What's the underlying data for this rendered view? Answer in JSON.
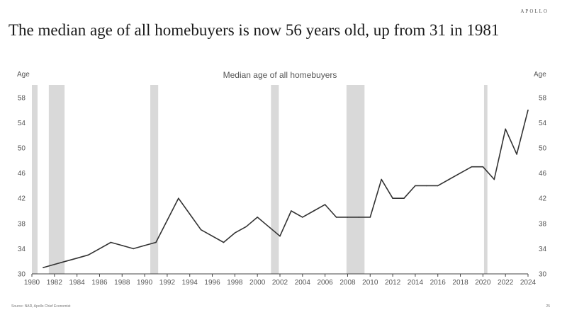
{
  "brand": "APOLLO",
  "headline": "The median age of all homebuyers is now 56 years old, up from 31 in 1981",
  "source": "Source: NAR, Apollo Chief Economist",
  "page_number": "25",
  "colors": {
    "line": "#333333",
    "recession": "#d9d9d9",
    "axis": "#444444",
    "text": "#555555"
  },
  "chart_data": {
    "type": "line",
    "title": "Median age of all homebuyers",
    "ylabel_left": "Age",
    "ylabel_right": "Age",
    "xlim": [
      1980,
      2024
    ],
    "ylim": [
      30,
      60
    ],
    "xticks": [
      "1980",
      "1982",
      "1984",
      "1986",
      "1988",
      "1990",
      "1992",
      "1994",
      "1996",
      "1998",
      "2000",
      "2002",
      "2004",
      "2006",
      "2008",
      "2010",
      "2012",
      "2014",
      "2016",
      "2018",
      "2020",
      "2022",
      "2024"
    ],
    "yticks": [
      "30",
      "34",
      "38",
      "42",
      "46",
      "50",
      "54",
      "58"
    ],
    "grid": false,
    "series": [
      {
        "x": [
          1981,
          1982,
          1983,
          1984,
          1985,
          1986,
          1987,
          1988,
          1989,
          1990,
          1991,
          1992,
          1993,
          1994,
          1995,
          1996,
          1997,
          1998,
          1999,
          2000,
          2001,
          2002,
          2003,
          2004,
          2005,
          2006,
          2007,
          2008,
          2009,
          2010,
          2011,
          2012,
          2013,
          2014,
          2015,
          2016,
          2017,
          2018,
          2019,
          2020,
          2021,
          2022,
          2023,
          2024
        ],
        "values": [
          31,
          31.5,
          32,
          32.5,
          33,
          34,
          35,
          34.5,
          34,
          34.5,
          35,
          38.5,
          42,
          39.5,
          37,
          36,
          35,
          36.5,
          37.5,
          39,
          37.5,
          36,
          40,
          39,
          40,
          41,
          39,
          39,
          39,
          39,
          45,
          42,
          42,
          44,
          44,
          44,
          45,
          46,
          47,
          47,
          45,
          53,
          49,
          56
        ]
      }
    ],
    "recessions": [
      [
        1980.0,
        1980.5
      ],
      [
        1981.5,
        1982.9
      ],
      [
        1990.5,
        1991.2
      ],
      [
        2001.2,
        2001.9
      ],
      [
        2007.9,
        2009.5
      ],
      [
        2020.1,
        2020.4
      ]
    ]
  }
}
